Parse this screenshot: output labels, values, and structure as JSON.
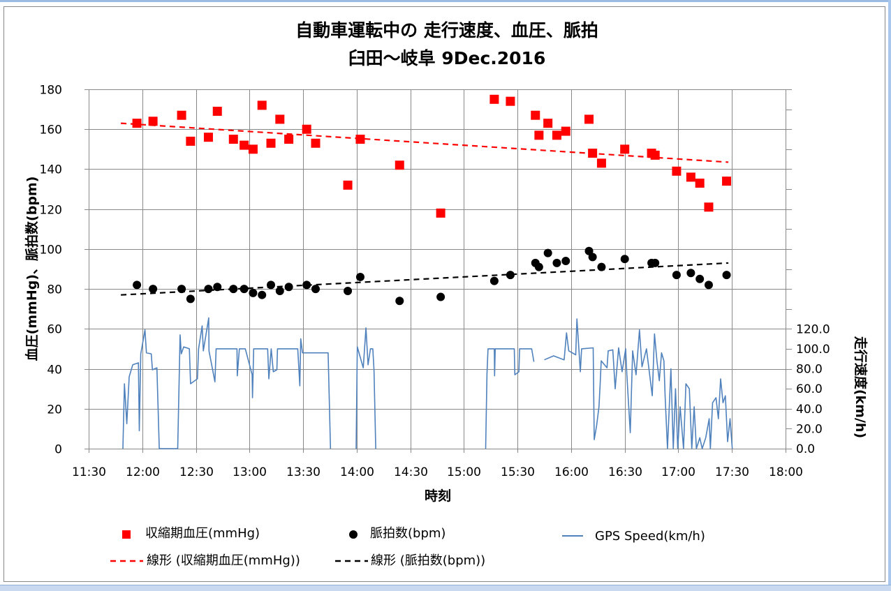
{
  "chart_data": {
    "type": "scatter+line",
    "title": "自動車運転中の 走行速度、血圧、脈拍",
    "subtitle": "臼田～岐阜 9Dec.2016",
    "xlabel": "時刻",
    "ylabel": "血圧(mmHg)、脈拍数(bpm)",
    "y2label": "走行速度(km/h)",
    "xlim": [
      "11:30",
      "18:00"
    ],
    "xticks": [
      "11:30",
      "12:00",
      "12:30",
      "13:00",
      "13:30",
      "14:00",
      "14:30",
      "15:00",
      "15:30",
      "16:00",
      "16:30",
      "17:00",
      "17:30",
      "18:00"
    ],
    "ylim": [
      0,
      180
    ],
    "yticks": [
      "0",
      "20",
      "40",
      "60",
      "80",
      "100",
      "120",
      "140",
      "160",
      "180"
    ],
    "y2lim": [
      0,
      360
    ],
    "y2ticks": [
      "0.0",
      "20.0",
      "40.0",
      "60.0",
      "80.0",
      "100.0",
      "120.0"
    ],
    "grid": true,
    "legend": "bottom",
    "colors": {
      "bp": "#ff0000",
      "pulse": "#000000",
      "speed": "#4f81bd",
      "frame": "#888888"
    },
    "series": [
      {
        "name": "収縮期血圧(mmHg)",
        "type": "scatter",
        "marker": "square",
        "axis": "left",
        "points": [
          [
            "11:57",
            163
          ],
          [
            "12:06",
            164
          ],
          [
            "12:22",
            167
          ],
          [
            "12:27",
            154
          ],
          [
            "12:37",
            156
          ],
          [
            "12:42",
            169
          ],
          [
            "12:51",
            155
          ],
          [
            "12:57",
            152
          ],
          [
            "13:02",
            150
          ],
          [
            "13:07",
            172
          ],
          [
            "13:12",
            153
          ],
          [
            "13:17",
            165
          ],
          [
            "13:22",
            155
          ],
          [
            "13:32",
            160
          ],
          [
            "13:37",
            153
          ],
          [
            "13:55",
            132
          ],
          [
            "14:02",
            155
          ],
          [
            "14:24",
            142
          ],
          [
            "14:47",
            118
          ],
          [
            "15:17",
            175
          ],
          [
            "15:26",
            174
          ],
          [
            "15:40",
            167
          ],
          [
            "15:42",
            157
          ],
          [
            "15:47",
            163
          ],
          [
            "15:52",
            157
          ],
          [
            "15:57",
            159
          ],
          [
            "16:10",
            165
          ],
          [
            "16:12",
            148
          ],
          [
            "16:17",
            143
          ],
          [
            "16:30",
            150
          ],
          [
            "16:45",
            148
          ],
          [
            "16:47",
            147
          ],
          [
            "16:59",
            139
          ],
          [
            "17:07",
            136
          ],
          [
            "17:12",
            133
          ],
          [
            "17:17",
            121
          ],
          [
            "17:27",
            134
          ]
        ]
      },
      {
        "name": "脈拍数(bpm)",
        "type": "scatter",
        "marker": "circle",
        "axis": "left",
        "points": [
          [
            "11:57",
            82
          ],
          [
            "12:06",
            80
          ],
          [
            "12:22",
            80
          ],
          [
            "12:27",
            75
          ],
          [
            "12:37",
            80
          ],
          [
            "12:42",
            81
          ],
          [
            "12:51",
            80
          ],
          [
            "12:57",
            80
          ],
          [
            "13:02",
            78
          ],
          [
            "13:07",
            77
          ],
          [
            "13:12",
            82
          ],
          [
            "13:17",
            79
          ],
          [
            "13:22",
            81
          ],
          [
            "13:32",
            82
          ],
          [
            "13:37",
            80
          ],
          [
            "13:55",
            79
          ],
          [
            "14:02",
            86
          ],
          [
            "14:24",
            74
          ],
          [
            "14:47",
            76
          ],
          [
            "15:17",
            84
          ],
          [
            "15:26",
            87
          ],
          [
            "15:40",
            93
          ],
          [
            "15:42",
            91
          ],
          [
            "15:47",
            98
          ],
          [
            "15:52",
            93
          ],
          [
            "15:57",
            94
          ],
          [
            "16:10",
            99
          ],
          [
            "16:12",
            96
          ],
          [
            "16:17",
            91
          ],
          [
            "16:30",
            95
          ],
          [
            "16:45",
            93
          ],
          [
            "16:47",
            93
          ],
          [
            "16:59",
            87
          ],
          [
            "17:07",
            88
          ],
          [
            "17:12",
            85
          ],
          [
            "17:17",
            82
          ],
          [
            "17:27",
            87
          ]
        ]
      },
      {
        "name": "GPS Speed(km/h)",
        "type": "line",
        "axis": "right",
        "points": [
          [
            "11:49:10",
            0
          ],
          [
            "11:50:00",
            65
          ],
          [
            "11:51:20",
            25
          ],
          [
            "11:52:40",
            72
          ],
          [
            "11:54:40",
            84
          ],
          [
            "11:57:50",
            86
          ],
          [
            "11:58:20",
            18
          ],
          [
            "11:59:10",
            95
          ],
          [
            "12:01:30",
            119
          ],
          [
            "12:02:20",
            96
          ],
          [
            "12:05:00",
            95
          ],
          [
            "12:05:40",
            79
          ],
          [
            "12:08:10",
            81
          ],
          [
            "12:09:30",
            0
          ],
          [
            "12:19:50",
            0
          ],
          [
            "12:21:10",
            114
          ],
          [
            "12:21:50",
            95
          ],
          [
            "12:23:10",
            102
          ],
          [
            "12:26:20",
            100
          ],
          [
            "12:27:00",
            65
          ],
          [
            "12:30:50",
            70
          ],
          [
            "12:31:30",
            100
          ],
          [
            "12:33:30",
            123
          ],
          [
            "12:34:10",
            98
          ],
          [
            "12:37:10",
            131
          ],
          [
            "12:37:20",
            98
          ],
          [
            "12:40:40",
            67
          ],
          [
            "12:41:20",
            100
          ],
          [
            "12:53:00",
            100
          ],
          [
            "12:53:10",
            73
          ],
          [
            "12:54:20",
            100
          ],
          [
            "12:57:40",
            100
          ],
          [
            "13:01:30",
            74
          ],
          [
            "13:01:40",
            51
          ],
          [
            "13:02:20",
            100
          ],
          [
            "13:10:10",
            100
          ],
          [
            "13:10:50",
            70
          ],
          [
            "13:12:10",
            100
          ],
          [
            "13:13:20",
            77
          ],
          [
            "13:15:20",
            79
          ],
          [
            "13:15:40",
            100
          ],
          [
            "13:27:00",
            100
          ],
          [
            "13:28:10",
            63
          ],
          [
            "13:28:40",
            110
          ],
          [
            "13:29:40",
            96
          ],
          [
            "13:44:00",
            96
          ],
          [
            "13:45:20",
            0
          ],
          [
            "13:52:00",
            null
          ],
          [
            "13:59:40",
            0
          ],
          [
            "14:00:20",
            102
          ],
          [
            "14:03:40",
            81
          ],
          [
            "14:05:10",
            121
          ],
          [
            "14:06:20",
            84
          ],
          [
            "14:07:40",
            100
          ],
          [
            "14:09:00",
            100
          ],
          [
            "14:09:40",
            79
          ],
          [
            "14:10:40",
            0
          ],
          [
            "14:40:00",
            null
          ],
          [
            "15:12:10",
            0
          ],
          [
            "15:12:55",
            75
          ],
          [
            "15:13:30",
            100
          ],
          [
            "15:17:00",
            100
          ],
          [
            "15:17:10",
            73
          ],
          [
            "15:17:30",
            100
          ],
          [
            "15:28:10",
            100
          ],
          [
            "15:28:30",
            74
          ],
          [
            "15:30:45",
            77
          ],
          [
            "15:31:10",
            100
          ],
          [
            "15:37:55",
            100
          ],
          [
            "15:39:10",
            87
          ],
          [
            "15:42:00",
            null
          ],
          [
            "15:45:00",
            89
          ],
          [
            "15:50:10",
            93
          ],
          [
            "15:56:05",
            89
          ],
          [
            "15:57:25",
            116
          ],
          [
            "15:58:40",
            98
          ],
          [
            "16:02:35",
            94
          ],
          [
            "16:03:15",
            130
          ],
          [
            "16:03:55",
            112
          ],
          [
            "16:05:10",
            77
          ],
          [
            "16:05:50",
            100
          ],
          [
            "16:12:20",
            101
          ],
          [
            "16:12:55",
            9
          ],
          [
            "16:14:15",
            23
          ],
          [
            "16:15:35",
            42
          ],
          [
            "16:16:15",
            65
          ],
          [
            "16:16:50",
            88
          ],
          [
            "16:20:05",
            81
          ],
          [
            "16:20:45",
            98
          ],
          [
            "16:23:20",
            99
          ],
          [
            "16:24:40",
            60
          ],
          [
            "16:26:35",
            101
          ],
          [
            "16:28:30",
            77
          ],
          [
            "16:30:30",
            100
          ],
          [
            "16:31:10",
            74
          ],
          [
            "16:33:05",
            16
          ],
          [
            "16:34:25",
            98
          ],
          [
            "16:36:20",
            74
          ],
          [
            "16:38:15",
            119
          ],
          [
            "16:39:40",
            82
          ],
          [
            "16:42:10",
            100
          ],
          [
            "16:45:25",
            53
          ],
          [
            "16:46:40",
            115
          ],
          [
            "16:48:00",
            88
          ],
          [
            "16:49:20",
            68
          ],
          [
            "16:50:35",
            96
          ],
          [
            "16:51:55",
            88
          ],
          [
            "16:52:35",
            53
          ],
          [
            "16:53:55",
            0
          ],
          [
            "16:55:50",
            80
          ],
          [
            "16:57:10",
            0
          ],
          [
            "16:58:25",
            60
          ],
          [
            "16:59:40",
            0
          ],
          [
            "17:01:00",
            42
          ],
          [
            "17:02:55",
            0
          ],
          [
            "17:04:15",
            65
          ],
          [
            "17:06:10",
            60
          ],
          [
            "17:07:30",
            0
          ],
          [
            "17:08:50",
            42
          ],
          [
            "17:10:05",
            0
          ],
          [
            "17:12:00",
            11
          ],
          [
            "17:13:20",
            0
          ],
          [
            "17:15:20",
            11
          ],
          [
            "17:17:15",
            30
          ],
          [
            "17:17:55",
            0
          ],
          [
            "17:19:10",
            46
          ],
          [
            "17:21:05",
            51
          ],
          [
            "17:22:25",
            30
          ],
          [
            "17:23:40",
            70
          ],
          [
            "17:25:00",
            46
          ],
          [
            "17:26:20",
            53
          ],
          [
            "17:27:35",
            7
          ],
          [
            "17:28:55",
            30
          ],
          [
            "17:30:10",
            0
          ]
        ]
      },
      {
        "name": "線形 (収縮期血圧(mmHg))",
        "type": "trendline",
        "style": "dashed",
        "axis": "left",
        "points": [
          [
            "11:48",
            163
          ],
          [
            "17:28",
            143.5
          ]
        ]
      },
      {
        "name": "線形 (脈拍数(bpm))",
        "type": "trendline",
        "style": "dashed",
        "axis": "left",
        "points": [
          [
            "11:48",
            77
          ],
          [
            "17:28",
            93
          ]
        ]
      }
    ]
  }
}
